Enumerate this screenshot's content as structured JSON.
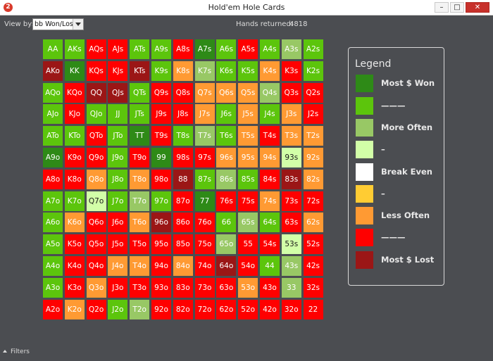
{
  "window": {
    "title": "Hold'em Hole Cards",
    "icon_glyph": "2",
    "min_glyph": "–",
    "max_glyph": "□",
    "close_glyph": "✕"
  },
  "toolbar": {
    "view_by_label": "View by:",
    "view_by_value": "bb Won/Lost",
    "hands_returned_label": "Hands returned:",
    "hands_returned_value": "4818"
  },
  "colors": {
    "dkgreen": "#2e8a17",
    "green": "#5cc50c",
    "ltgreen": "#98c865",
    "pale": "#d2ffa8",
    "white": "#ffffff",
    "yellow": "#ffcc33",
    "orange": "#ff9a33",
    "red": "#ff0000",
    "dkred": "#9b1616"
  },
  "grid": {
    "rows": [
      [
        [
          "AA",
          "green"
        ],
        [
          "AKs",
          "green"
        ],
        [
          "AQs",
          "red"
        ],
        [
          "AJs",
          "red"
        ],
        [
          "ATs",
          "green"
        ],
        [
          "A9s",
          "green"
        ],
        [
          "A8s",
          "red"
        ],
        [
          "A7s",
          "dkgreen"
        ],
        [
          "A6s",
          "green"
        ],
        [
          "A5s",
          "red"
        ],
        [
          "A4s",
          "green"
        ],
        [
          "A3s",
          "ltgreen"
        ],
        [
          "A2s",
          "green"
        ]
      ],
      [
        [
          "AKo",
          "dkred"
        ],
        [
          "KK",
          "dkgreen"
        ],
        [
          "KQs",
          "red"
        ],
        [
          "KJs",
          "red"
        ],
        [
          "KTs",
          "dkred"
        ],
        [
          "K9s",
          "green"
        ],
        [
          "K8s",
          "orange"
        ],
        [
          "K7s",
          "ltgreen"
        ],
        [
          "K6s",
          "green"
        ],
        [
          "K5s",
          "green"
        ],
        [
          "K4s",
          "orange"
        ],
        [
          "K3s",
          "red"
        ],
        [
          "K2s",
          "green"
        ]
      ],
      [
        [
          "AQo",
          "green"
        ],
        [
          "KQo",
          "red"
        ],
        [
          "QQ",
          "dkred"
        ],
        [
          "QJs",
          "dkred"
        ],
        [
          "QTs",
          "green"
        ],
        [
          "Q9s",
          "red"
        ],
        [
          "Q8s",
          "red"
        ],
        [
          "Q7s",
          "orange"
        ],
        [
          "Q6s",
          "orange"
        ],
        [
          "Q5s",
          "orange"
        ],
        [
          "Q4s",
          "ltgreen"
        ],
        [
          "Q3s",
          "red"
        ],
        [
          "Q2s",
          "red"
        ]
      ],
      [
        [
          "AJo",
          "green"
        ],
        [
          "KJo",
          "red"
        ],
        [
          "QJo",
          "green"
        ],
        [
          "JJ",
          "green"
        ],
        [
          "JTs",
          "green"
        ],
        [
          "J9s",
          "red"
        ],
        [
          "J8s",
          "red"
        ],
        [
          "J7s",
          "orange"
        ],
        [
          "J6s",
          "green"
        ],
        [
          "J5s",
          "orange"
        ],
        [
          "J4s",
          "green"
        ],
        [
          "J3s",
          "orange"
        ],
        [
          "J2s",
          "red"
        ]
      ],
      [
        [
          "ATo",
          "green"
        ],
        [
          "KTo",
          "green"
        ],
        [
          "QTo",
          "red"
        ],
        [
          "JTo",
          "green"
        ],
        [
          "TT",
          "dkgreen"
        ],
        [
          "T9s",
          "red"
        ],
        [
          "T8s",
          "green"
        ],
        [
          "T7s",
          "ltgreen"
        ],
        [
          "T6s",
          "green"
        ],
        [
          "T5s",
          "orange"
        ],
        [
          "T4s",
          "red"
        ],
        [
          "T3s",
          "orange"
        ],
        [
          "T2s",
          "orange"
        ]
      ],
      [
        [
          "A9o",
          "dkgreen"
        ],
        [
          "K9o",
          "red"
        ],
        [
          "Q9o",
          "red"
        ],
        [
          "J9o",
          "green"
        ],
        [
          "T9o",
          "red"
        ],
        [
          "99",
          "dkgreen"
        ],
        [
          "98s",
          "red"
        ],
        [
          "97s",
          "red"
        ],
        [
          "96s",
          "orange"
        ],
        [
          "95s",
          "orange"
        ],
        [
          "94s",
          "orange"
        ],
        [
          "93s",
          "pale"
        ],
        [
          "92s",
          "orange"
        ]
      ],
      [
        [
          "A8o",
          "red"
        ],
        [
          "K8o",
          "red"
        ],
        [
          "Q8o",
          "orange"
        ],
        [
          "J8o",
          "green"
        ],
        [
          "T8o",
          "orange"
        ],
        [
          "98o",
          "red"
        ],
        [
          "88",
          "dkred"
        ],
        [
          "87s",
          "green"
        ],
        [
          "86s",
          "ltgreen"
        ],
        [
          "85s",
          "green"
        ],
        [
          "84s",
          "red"
        ],
        [
          "83s",
          "dkred"
        ],
        [
          "82s",
          "orange"
        ]
      ],
      [
        [
          "A7o",
          "green"
        ],
        [
          "K7o",
          "green"
        ],
        [
          "Q7o",
          "pale"
        ],
        [
          "J7o",
          "green"
        ],
        [
          "T7o",
          "ltgreen"
        ],
        [
          "97o",
          "green"
        ],
        [
          "87o",
          "red"
        ],
        [
          "77",
          "dkgreen"
        ],
        [
          "76s",
          "red"
        ],
        [
          "75s",
          "red"
        ],
        [
          "74s",
          "orange"
        ],
        [
          "73s",
          "red"
        ],
        [
          "72s",
          "red"
        ]
      ],
      [
        [
          "A6o",
          "green"
        ],
        [
          "K6o",
          "orange"
        ],
        [
          "Q6o",
          "red"
        ],
        [
          "J6o",
          "red"
        ],
        [
          "T6o",
          "orange"
        ],
        [
          "96o",
          "dkred"
        ],
        [
          "86o",
          "red"
        ],
        [
          "76o",
          "red"
        ],
        [
          "66",
          "green"
        ],
        [
          "65s",
          "ltgreen"
        ],
        [
          "64s",
          "green"
        ],
        [
          "63s",
          "red"
        ],
        [
          "62s",
          "orange"
        ]
      ],
      [
        [
          "A5o",
          "green"
        ],
        [
          "K5o",
          "red"
        ],
        [
          "Q5o",
          "red"
        ],
        [
          "J5o",
          "red"
        ],
        [
          "T5o",
          "red"
        ],
        [
          "95o",
          "red"
        ],
        [
          "85o",
          "red"
        ],
        [
          "75o",
          "red"
        ],
        [
          "65o",
          "ltgreen"
        ],
        [
          "55",
          "red"
        ],
        [
          "54s",
          "red"
        ],
        [
          "53s",
          "pale"
        ],
        [
          "52s",
          "red"
        ]
      ],
      [
        [
          "A4o",
          "green"
        ],
        [
          "K4o",
          "red"
        ],
        [
          "Q4o",
          "red"
        ],
        [
          "J4o",
          "orange"
        ],
        [
          "T4o",
          "orange"
        ],
        [
          "94o",
          "red"
        ],
        [
          "84o",
          "orange"
        ],
        [
          "74o",
          "red"
        ],
        [
          "64o",
          "dkred"
        ],
        [
          "54o",
          "red"
        ],
        [
          "44",
          "green"
        ],
        [
          "43s",
          "ltgreen"
        ],
        [
          "42s",
          "red"
        ]
      ],
      [
        [
          "A3o",
          "green"
        ],
        [
          "K3o",
          "red"
        ],
        [
          "Q3o",
          "orange"
        ],
        [
          "J3o",
          "red"
        ],
        [
          "T3o",
          "red"
        ],
        [
          "93o",
          "red"
        ],
        [
          "83o",
          "red"
        ],
        [
          "73o",
          "red"
        ],
        [
          "63o",
          "red"
        ],
        [
          "53o",
          "orange"
        ],
        [
          "43o",
          "red"
        ],
        [
          "33",
          "ltgreen"
        ],
        [
          "32s",
          "red"
        ]
      ],
      [
        [
          "A2o",
          "red"
        ],
        [
          "K2o",
          "orange"
        ],
        [
          "Q2o",
          "red"
        ],
        [
          "J2o",
          "green"
        ],
        [
          "T2o",
          "ltgreen"
        ],
        [
          "92o",
          "red"
        ],
        [
          "82o",
          "red"
        ],
        [
          "72o",
          "red"
        ],
        [
          "62o",
          "red"
        ],
        [
          "52o",
          "red"
        ],
        [
          "42o",
          "red"
        ],
        [
          "32o",
          "red"
        ],
        [
          "22",
          "red"
        ]
      ]
    ]
  },
  "legend": {
    "title": "Legend",
    "items": [
      {
        "label": "Most $ Won",
        "color_key": "dkgreen"
      },
      {
        "label": "———",
        "color_key": "green"
      },
      {
        "label": "More Often",
        "color_key": "ltgreen"
      },
      {
        "label": "–",
        "color_key": "pale"
      },
      {
        "label": "Break Even",
        "color_key": "white"
      },
      {
        "label": "–",
        "color_key": "yellow"
      },
      {
        "label": "Less Often",
        "color_key": "orange"
      },
      {
        "label": "———",
        "color_key": "red"
      },
      {
        "label": "Most $ Lost",
        "color_key": "dkred"
      }
    ]
  },
  "footer": {
    "filters_label": "Filters"
  }
}
